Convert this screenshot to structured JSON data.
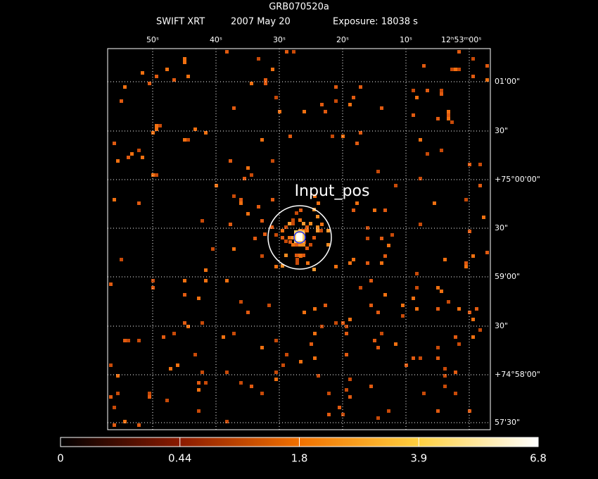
{
  "header": {
    "object": "GRB070520a",
    "instrument": "SWIFT XRT",
    "date": "2007 May 20",
    "exposure": "Exposure: 18038 s"
  },
  "image": {
    "ra_labels": [
      "50ˢ",
      "40ˢ",
      "30ˢ",
      "20ˢ",
      "10ˢ",
      "12ʰ53ᵐ00ˢ"
    ],
    "dec_labels": [
      "01'00\"",
      "30\"",
      "+75°00'00\"",
      "30\"",
      "59'00\"",
      "30\"",
      "+74°58'00\"",
      "57'30\""
    ],
    "annotation": "Input_pos"
  },
  "colorbar": {
    "ticks": [
      "0",
      "0.44",
      "1.8",
      "3.9",
      "6.8"
    ]
  }
}
